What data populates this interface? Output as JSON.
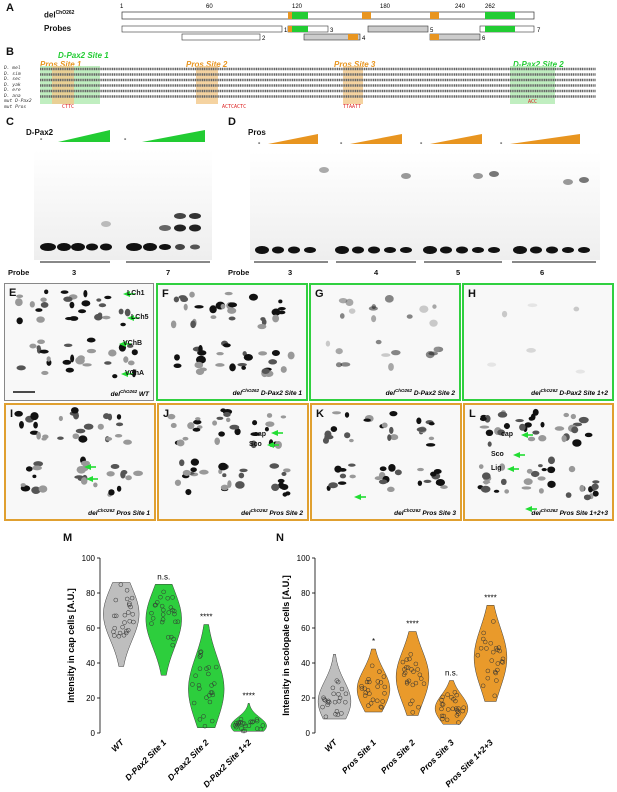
{
  "panel_letters": {
    "A": "A",
    "B": "B",
    "C": "C",
    "D": "D",
    "E": "E",
    "F": "F",
    "G": "G",
    "H": "H",
    "I": "I",
    "J": "J",
    "K": "K",
    "L": "L",
    "M": "M",
    "N": "N"
  },
  "panelA": {
    "del_label": "del",
    "del_sup": "ChO262",
    "probes_label": "Probes",
    "ticks": [
      "1",
      "60",
      "120",
      "180",
      "240",
      "262"
    ],
    "probe_numbers": [
      "1",
      "2",
      "3",
      "4",
      "5",
      "6",
      "7"
    ]
  },
  "panelB": {
    "site_labels": {
      "dpax2_site1": "D-Pax2 Site 1",
      "pros_site1": "Pros Site 1",
      "pros_site2": "Pros Site 2",
      "pros_site3": "Pros Site 3",
      "dpax2_site2": "D-Pax2 Site 2"
    },
    "species": [
      "D. mel",
      "D. sim",
      "D. sec",
      "D. yak",
      "D. ere",
      "D. ana",
      "mut D-Pax2",
      "mut Pros"
    ],
    "mut_seqs": {
      "m1": "CTTC",
      "m2": "ACTCACTC",
      "m3": "TTAATT",
      "m4": "ACC"
    }
  },
  "panelC": {
    "factor": "D-Pax2",
    "probe_label": "Probe",
    "probes": [
      "3",
      "7"
    ],
    "minus": "-"
  },
  "panelD": {
    "factor": "Pros",
    "probe_label": "Probe",
    "probes": [
      "3",
      "4",
      "5",
      "6"
    ],
    "minus": "-"
  },
  "micro": {
    "E": {
      "caption_main": "del",
      "caption_sup": "ChO262",
      "caption_tail": "WT",
      "arrows": [
        "LCh1",
        "LCh5",
        "VChB",
        "VChA"
      ]
    },
    "F": {
      "caption_main": "del",
      "caption_sup": "ChO262",
      "caption_tail": "D-Pax2 Site 1"
    },
    "G": {
      "caption_main": "del",
      "caption_sup": "ChO262",
      "caption_tail": "D-Pax2 Site 2"
    },
    "H": {
      "caption_main": "del",
      "caption_sup": "ChO262",
      "caption_tail": "D-Pax2 Site 1+2"
    },
    "I": {
      "caption_main": "del",
      "caption_sup": "ChO262",
      "caption_tail": "Pros Site 1"
    },
    "J": {
      "caption_main": "del",
      "caption_sup": "ChO262",
      "caption_tail": "Pros Site 2",
      "arrows": [
        "cap",
        "Sco"
      ]
    },
    "K": {
      "caption_main": "del",
      "caption_sup": "ChO262",
      "caption_tail": "Pros Site 3"
    },
    "L": {
      "caption_main": "del",
      "caption_sup": "ChO262",
      "caption_tail": "Pros Site 1+2+3",
      "arrows": [
        "cap",
        "Sco",
        "Lig"
      ]
    }
  },
  "colors": {
    "green": "#22cc33",
    "orange": "#e89520",
    "gray": "#bbbbbb"
  },
  "chart_data": [
    {
      "type": "violin",
      "panel": "M",
      "ylabel": "Intensity in cap cells [A.U.]",
      "ylim": [
        0,
        100
      ],
      "yticks": [
        "0",
        "20",
        "40",
        "60",
        "80",
        "100"
      ],
      "categories": [
        "WT",
        "D-Pax2 Site 1",
        "D-Pax2 Site 2",
        "D-Pax2 Site 1+2"
      ],
      "medians": [
        68,
        65,
        25,
        4
      ],
      "ranges": [
        [
          38,
          86
        ],
        [
          33,
          85
        ],
        [
          3,
          62
        ],
        [
          1,
          17
        ]
      ],
      "significance": [
        "",
        "n.s.",
        "****",
        "****"
      ],
      "colors": [
        "#bbbbbb",
        "#22cc33",
        "#22cc33",
        "#22cc33"
      ]
    },
    {
      "type": "violin",
      "panel": "N",
      "ylabel": "Intensity in scolopale cells [A.U.]",
      "ylim": [
        0,
        100
      ],
      "yticks": [
        "0",
        "20",
        "40",
        "60",
        "80",
        "100"
      ],
      "categories": [
        "WT",
        "Pros Site 1",
        "Pros Site 2",
        "Pros Site 3",
        "Pros Site 1+2+3"
      ],
      "medians": [
        18,
        25,
        32,
        14,
        43
      ],
      "ranges": [
        [
          8,
          45
        ],
        [
          12,
          48
        ],
        [
          10,
          58
        ],
        [
          5,
          30
        ],
        [
          18,
          73
        ]
      ],
      "significance": [
        "",
        "*",
        "****",
        "n.s.",
        "****"
      ],
      "colors": [
        "#bbbbbb",
        "#e89520",
        "#e89520",
        "#e89520",
        "#e89520"
      ]
    }
  ]
}
